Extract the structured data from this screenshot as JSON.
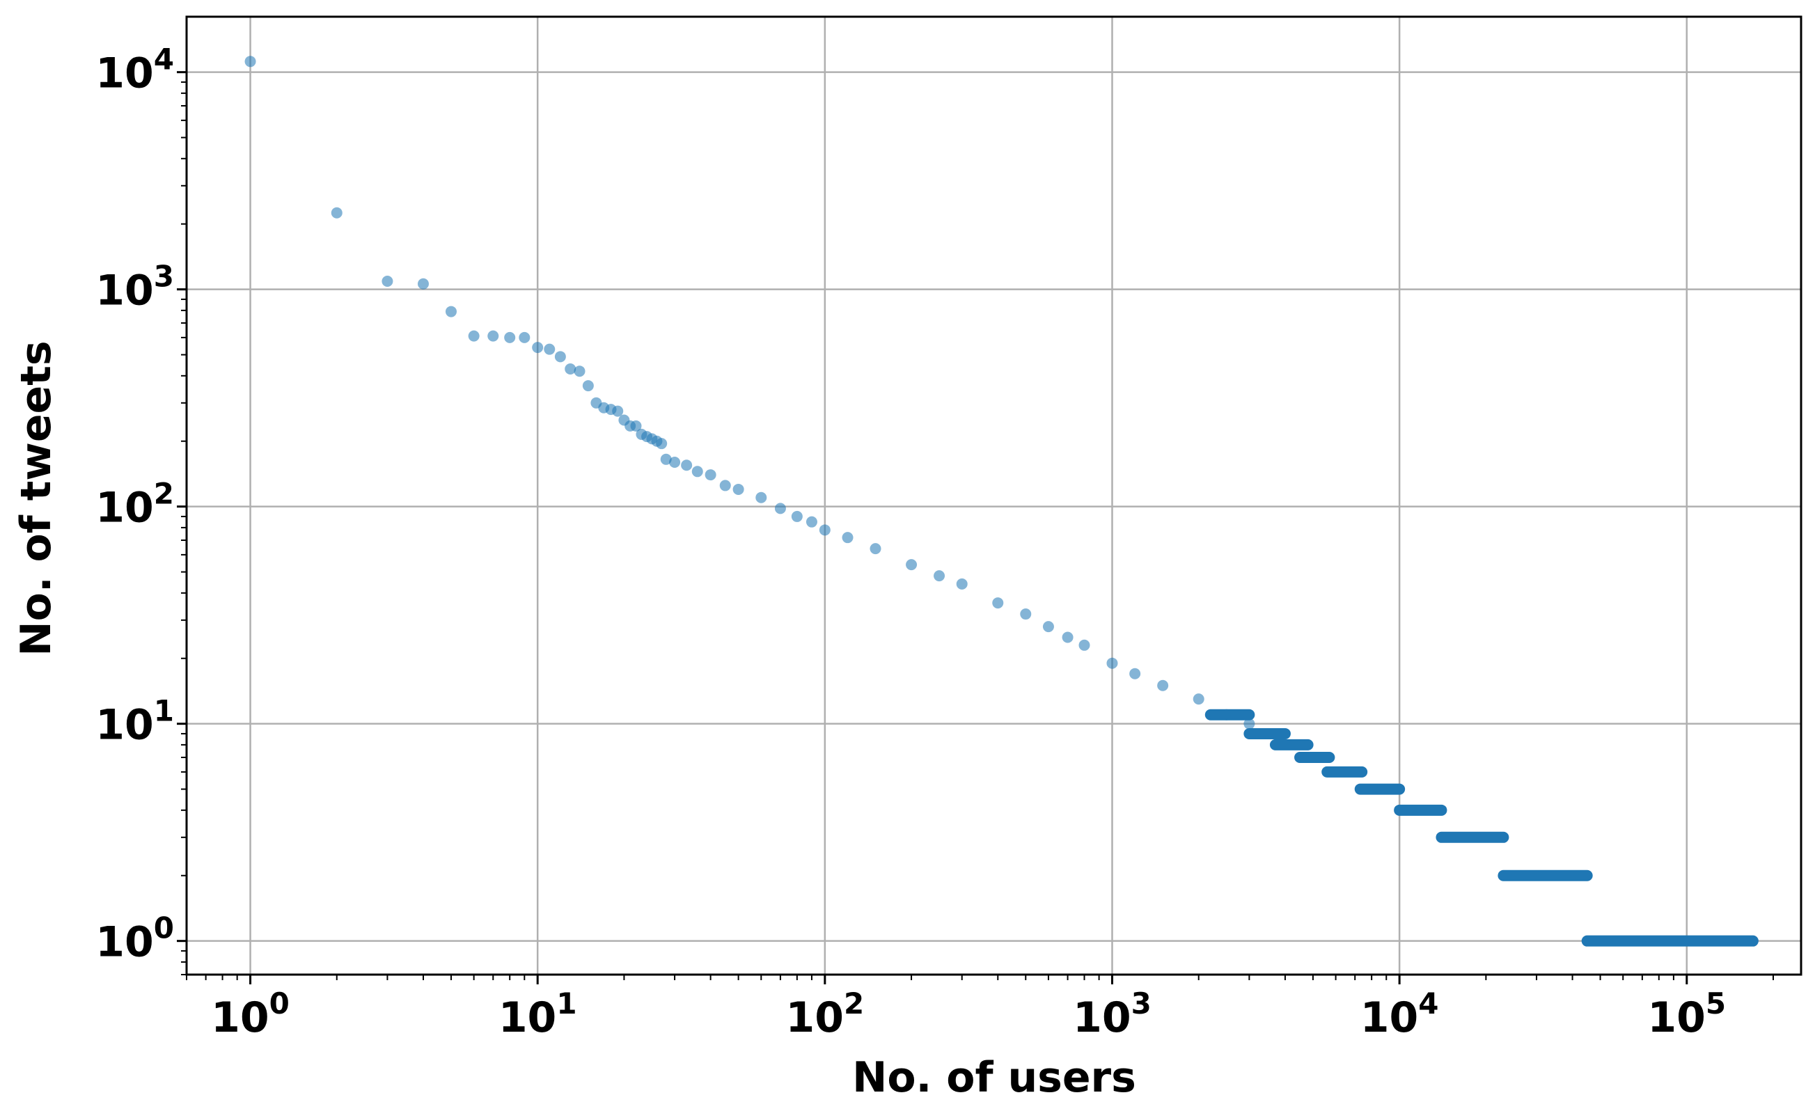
{
  "colors": {
    "point": "#1f77b4",
    "grid": "#b0b0b0",
    "axis": "#000000",
    "background": "#ffffff"
  },
  "chart_data": {
    "type": "scatter",
    "title": "",
    "xlabel": "No. of users",
    "ylabel": "No. of tweets",
    "xscale": "log",
    "yscale": "log",
    "xlim": [
      0.6,
      250000
    ],
    "ylim": [
      0.7,
      18000
    ],
    "grid": true,
    "x_ticks": [
      {
        "value": 1,
        "base": "10",
        "exp": "0"
      },
      {
        "value": 10,
        "base": "10",
        "exp": "1"
      },
      {
        "value": 100,
        "base": "10",
        "exp": "2"
      },
      {
        "value": 1000,
        "base": "10",
        "exp": "3"
      },
      {
        "value": 10000,
        "base": "10",
        "exp": "4"
      },
      {
        "value": 100000,
        "base": "10",
        "exp": "5"
      }
    ],
    "y_ticks": [
      {
        "value": 1,
        "base": "10",
        "exp": "0"
      },
      {
        "value": 10,
        "base": "10",
        "exp": "1"
      },
      {
        "value": 100,
        "base": "10",
        "exp": "2"
      },
      {
        "value": 1000,
        "base": "10",
        "exp": "3"
      },
      {
        "value": 10000,
        "base": "10",
        "exp": "4"
      }
    ],
    "series": [
      {
        "points": [
          [
            1,
            11200
          ],
          [
            2,
            2250
          ],
          [
            3,
            1090
          ],
          [
            4,
            1060
          ],
          [
            5,
            790
          ],
          [
            6,
            610
          ],
          [
            7,
            610
          ],
          [
            8,
            600
          ],
          [
            9,
            600
          ],
          [
            10,
            540
          ],
          [
            11,
            530
          ],
          [
            12,
            490
          ],
          [
            13,
            430
          ],
          [
            14,
            420
          ],
          [
            15,
            360
          ],
          [
            16,
            300
          ],
          [
            17,
            285
          ],
          [
            18,
            280
          ],
          [
            19,
            275
          ],
          [
            20,
            250
          ],
          [
            21,
            235
          ],
          [
            22,
            235
          ],
          [
            23,
            215
          ],
          [
            24,
            210
          ],
          [
            25,
            205
          ],
          [
            26,
            200
          ],
          [
            27,
            195
          ],
          [
            28,
            165
          ],
          [
            30,
            160
          ],
          [
            33,
            155
          ],
          [
            36,
            145
          ],
          [
            40,
            140
          ],
          [
            45,
            125
          ],
          [
            50,
            120
          ],
          [
            60,
            110
          ],
          [
            70,
            98
          ],
          [
            80,
            90
          ],
          [
            90,
            85
          ],
          [
            100,
            78
          ],
          [
            120,
            72
          ],
          [
            150,
            64
          ],
          [
            200,
            54
          ],
          [
            250,
            48
          ],
          [
            300,
            44
          ],
          [
            400,
            36
          ],
          [
            500,
            32
          ],
          [
            600,
            28
          ],
          [
            700,
            25
          ],
          [
            800,
            23
          ],
          [
            1000,
            19
          ],
          [
            1200,
            17
          ],
          [
            1500,
            15
          ],
          [
            2000,
            13
          ],
          [
            2500,
            11
          ],
          [
            3000,
            10
          ]
        ],
        "segments": [
          {
            "y": 11,
            "x": [
              2200,
              3000
            ]
          },
          {
            "y": 9,
            "x": [
              3000,
              4000
            ]
          },
          {
            "y": 8,
            "x": [
              3700,
              4800
            ]
          },
          {
            "y": 7,
            "x": [
              4500,
              5700
            ]
          },
          {
            "y": 6,
            "x": [
              5600,
              7400
            ]
          },
          {
            "y": 5,
            "x": [
              7300,
              10000
            ]
          },
          {
            "y": 4,
            "x": [
              10000,
              14000
            ]
          },
          {
            "y": 3,
            "x": [
              14000,
              23000
            ]
          },
          {
            "y": 2,
            "x": [
              23000,
              45000
            ]
          },
          {
            "y": 1,
            "x": [
              45000,
              170000
            ]
          }
        ]
      }
    ]
  }
}
